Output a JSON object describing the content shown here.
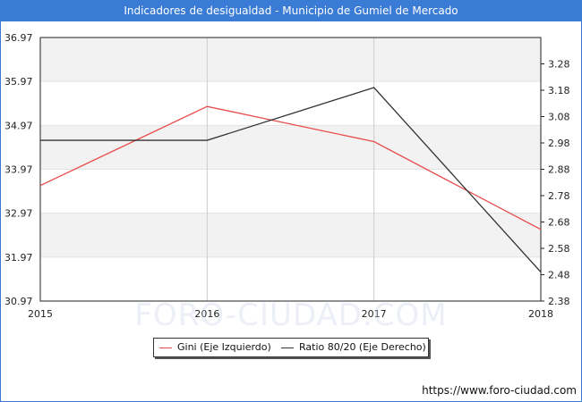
{
  "title": "Indicadores de desigualdad - Municipio de Gumiel de Mercado",
  "source": "https://www.foro-ciudad.com",
  "watermark": "FORO-CIUDAD.COM",
  "chart_data": {
    "type": "line",
    "x": [
      2015,
      2016,
      2017,
      2018
    ],
    "x_tick_labels": [
      "2015",
      "2016",
      "2017",
      "2018"
    ],
    "y_left_ticks": [
      "30.97",
      "31.97",
      "32.97",
      "33.97",
      "34.97",
      "35.97",
      "36.97"
    ],
    "y_right_ticks": [
      "2.38",
      "2.48",
      "2.58",
      "2.68",
      "2.78",
      "2.88",
      "2.98",
      "3.08",
      "3.18",
      "3.28"
    ],
    "y_left_lim": [
      30.97,
      36.97
    ],
    "y_right_lim": [
      2.38,
      3.38
    ],
    "series": [
      {
        "name": "Gini (Eje Izquierdo)",
        "axis": "left",
        "color": "#e84b4b",
        "values": [
          33.6,
          35.4,
          34.6,
          32.6
        ]
      },
      {
        "name": "Ratio 80/20 (Eje Derecho)",
        "axis": "right",
        "color": "#333333",
        "values": [
          2.99,
          2.99,
          3.19,
          2.49
        ]
      }
    ],
    "grid": true,
    "legend_position": "bottom"
  }
}
